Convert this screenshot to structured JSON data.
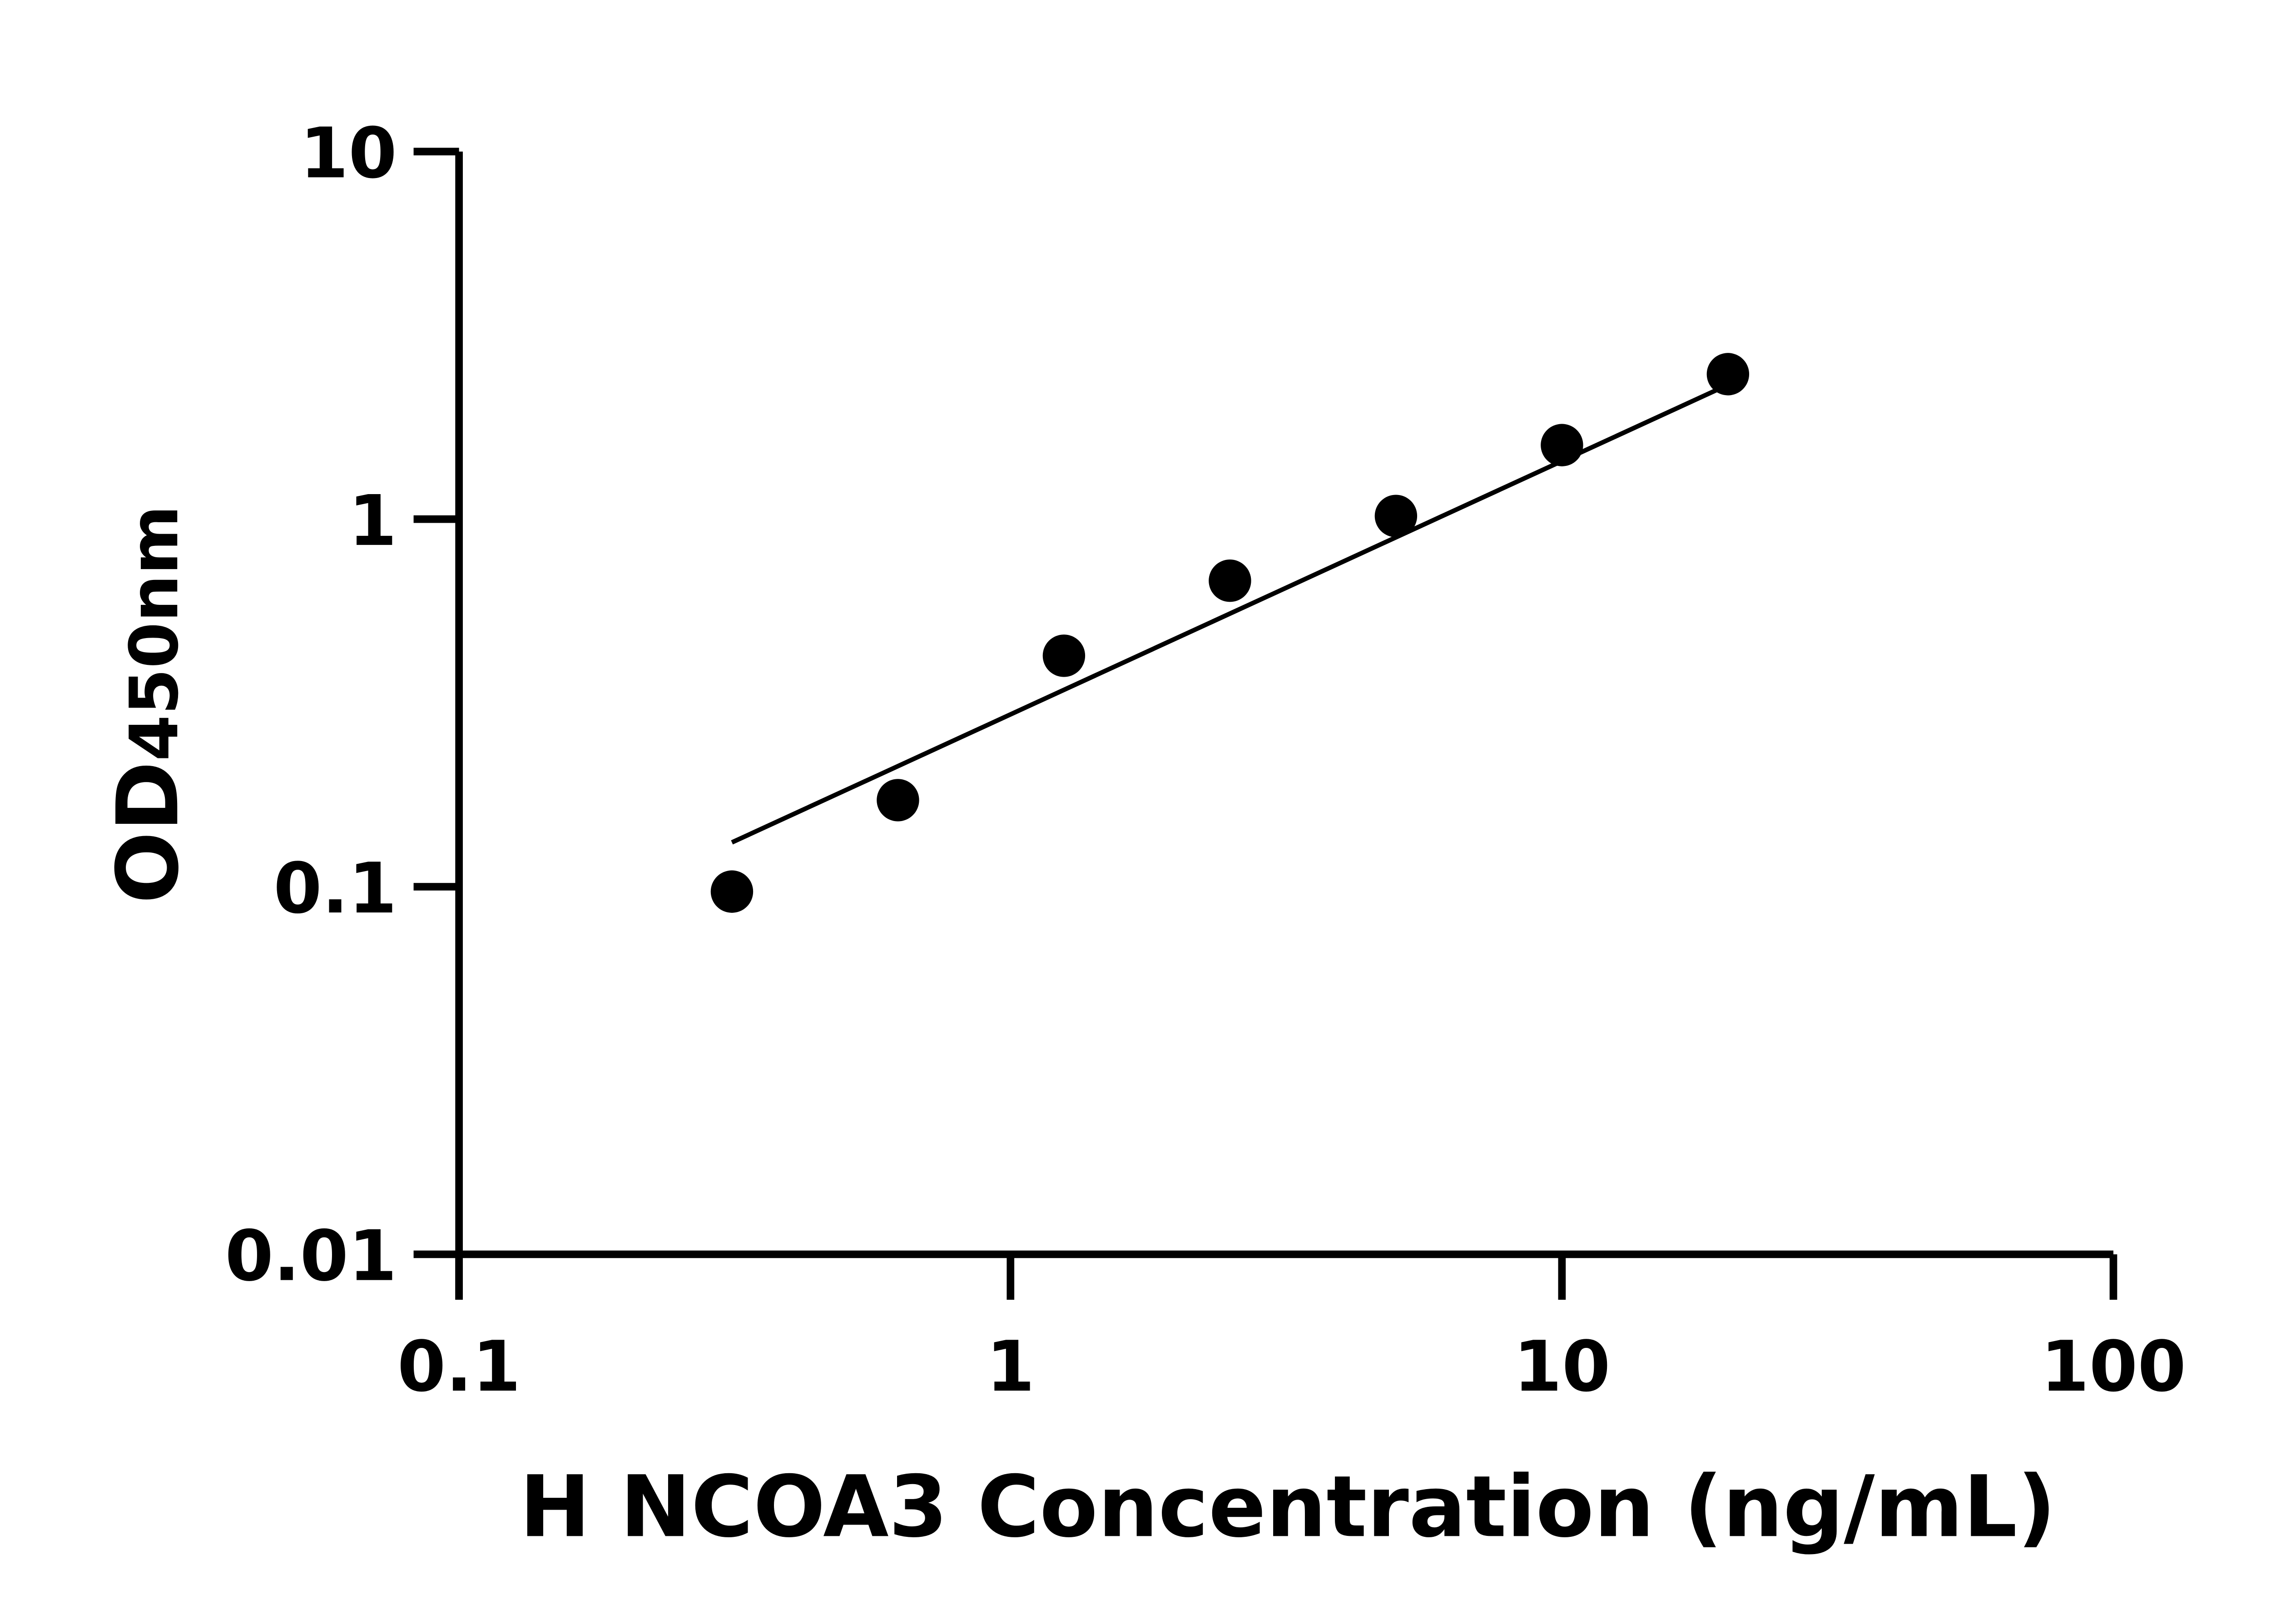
{
  "chart_data": {
    "type": "scatter",
    "title": "",
    "xlabel": "H NCOA3 Concentration (ng/mL)",
    "ylabel_main": "OD",
    "ylabel_sub": "450nm",
    "x_scale": "log",
    "y_scale": "log",
    "xlim": [
      0.1,
      100
    ],
    "ylim": [
      0.01,
      10
    ],
    "x_ticks": [
      "0.1",
      "1",
      "10",
      "100"
    ],
    "y_ticks": [
      "0.01",
      "0.1",
      "1",
      "10"
    ],
    "grid": false,
    "points": {
      "x": [
        0.3125,
        0.625,
        1.25,
        2.5,
        5,
        10,
        20
      ],
      "y": [
        0.097,
        0.172,
        0.425,
        0.68,
        1.02,
        1.59,
        2.48
      ]
    },
    "fit_line": {
      "x": [
        0.3125,
        20
      ],
      "y": [
        0.132,
        2.32
      ]
    },
    "colors": {
      "marker": "#000000",
      "axis": "#000000"
    }
  }
}
